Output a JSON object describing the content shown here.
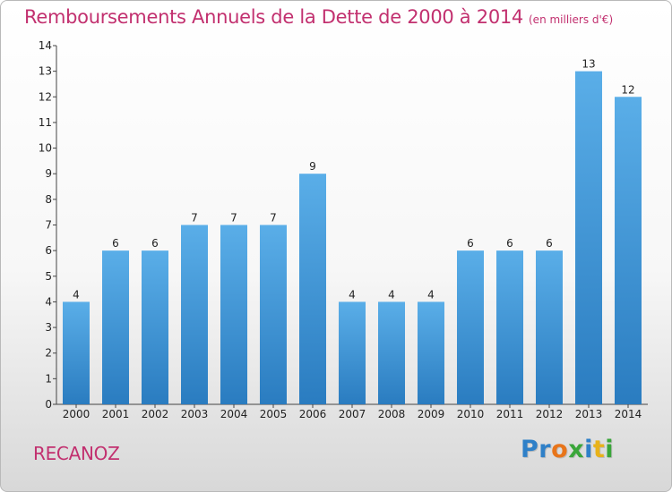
{
  "title": {
    "main": "Remboursements Annuels de la Dette de 2000 à 2014",
    "sub": "(en milliers d'€)"
  },
  "footer": {
    "place": "RECANOZ",
    "logo": [
      "P",
      "r",
      "o",
      "x",
      "i",
      "t",
      "i"
    ],
    "logo_colors": [
      "#2f80c8",
      "#2f80c8",
      "#e8751a",
      "#3aa63a",
      "#2f80c8",
      "#e8b21a",
      "#3aa63a"
    ]
  },
  "chart_data": {
    "type": "bar",
    "title": "Remboursements Annuels de la Dette de 2000 à 2014",
    "subtitle": "(en milliers d'€)",
    "categories": [
      "2000",
      "2001",
      "2002",
      "2003",
      "2004",
      "2005",
      "2006",
      "2007",
      "2008",
      "2009",
      "2010",
      "2011",
      "2012",
      "2013",
      "2014"
    ],
    "values": [
      4,
      6,
      6,
      7,
      7,
      7,
      9,
      4,
      4,
      4,
      6,
      6,
      6,
      13,
      12
    ],
    "ylim": [
      0,
      14
    ],
    "yticks": [
      0,
      1,
      2,
      3,
      4,
      5,
      6,
      7,
      8,
      9,
      10,
      11,
      12,
      13,
      14
    ],
    "xlabel": "",
    "ylabel": "",
    "grid": false,
    "bar_color_top": "#5aaee8",
    "bar_color_bottom": "#2a7cc0"
  }
}
